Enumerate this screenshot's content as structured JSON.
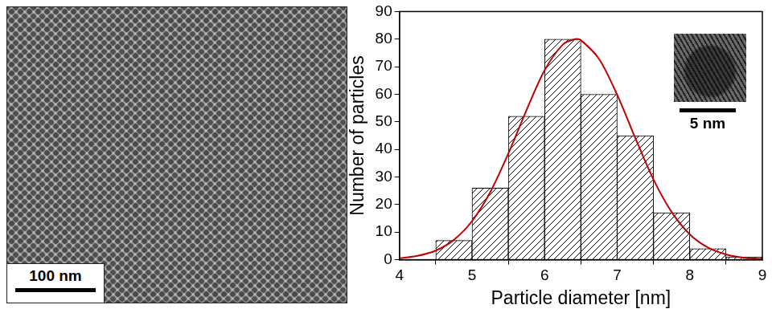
{
  "chart_data": {
    "type": "histogram",
    "x_label": "Particle diameter [nm]",
    "y_label": "Number of particles",
    "bins": [
      4.5,
      5,
      5.5,
      6,
      6.5,
      7,
      7.5,
      8,
      8.5,
      9
    ],
    "values": [
      7,
      26,
      52,
      80,
      60,
      45,
      17,
      4,
      1
    ],
    "color": "#000000",
    "fit": {
      "type": "line",
      "color": "#c00000",
      "x": [
        4,
        4.25,
        4.5,
        4.75,
        5,
        5.25,
        5.5,
        5.75,
        6,
        6.25,
        6.42,
        6.5,
        6.75,
        7,
        7.25,
        7.5,
        7.75,
        8,
        8.25,
        8.5,
        8.75,
        9
      ],
      "values": [
        0.5,
        1.4,
        3.3,
        7.2,
        14,
        24.5,
        38.5,
        54.2,
        68.7,
        78,
        80,
        79.6,
        72.8,
        59.8,
        44.1,
        29.1,
        17.3,
        9.2,
        4.4,
        1.9,
        0.7,
        0.3
      ]
    },
    "xlim": [
      4,
      9
    ],
    "xticks": [
      4,
      5,
      6,
      7,
      8,
      9
    ],
    "ylim": [
      0,
      90
    ],
    "yticks": [
      0,
      10,
      20,
      30,
      40,
      50,
      60,
      70,
      80,
      90
    ],
    "grid": false
  },
  "micrograph": {
    "scale_bar_label": "100 nm"
  },
  "inset": {
    "scale_bar_label": "5 nm"
  }
}
